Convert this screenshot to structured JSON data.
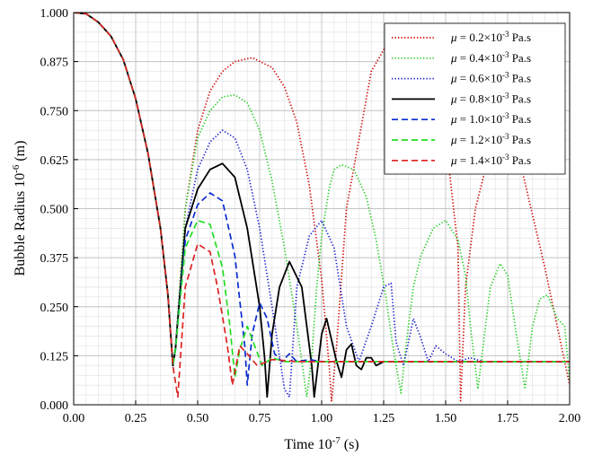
{
  "chart_data": {
    "type": "line",
    "xlabel": "Time 10",
    "xlabel_sup": "-7",
    "xlabel_unit": " (s)",
    "ylabel": "Bubble Radius 10",
    "ylabel_sup": "-6",
    "ylabel_unit": " (m)",
    "xlim": [
      0,
      2
    ],
    "ylim": [
      0,
      1
    ],
    "xticks": [
      "0.00",
      "0.25",
      "0.50",
      "0.75",
      "1.00",
      "1.25",
      "1.50",
      "1.75",
      "2.00"
    ],
    "yticks": [
      "0.000",
      "0.125",
      "0.250",
      "0.375",
      "0.500",
      "0.625",
      "0.750",
      "0.875",
      "1.000"
    ],
    "grid": true,
    "minor_grid": true,
    "legend_position": "top-right",
    "series": [
      {
        "name": "μ = 0.2×10-3 Pa.s",
        "mu": "0.2",
        "color": "#d00000",
        "dash": "dotted",
        "x": [
          0,
          0.05,
          0.1,
          0.15,
          0.2,
          0.25,
          0.3,
          0.35,
          0.38,
          0.4,
          0.41,
          0.45,
          0.5,
          0.55,
          0.6,
          0.65,
          0.72,
          0.8,
          0.85,
          0.9,
          0.95,
          1.0,
          1.03,
          1.04,
          1.06,
          1.1,
          1.2,
          1.3,
          1.4,
          1.5,
          1.55,
          1.56,
          1.58,
          1.62,
          1.7,
          1.8,
          1.9,
          2.0
        ],
        "y": [
          1.0,
          0.997,
          0.975,
          0.94,
          0.88,
          0.78,
          0.64,
          0.45,
          0.28,
          0.1,
          0.14,
          0.5,
          0.7,
          0.8,
          0.85,
          0.875,
          0.885,
          0.86,
          0.81,
          0.72,
          0.56,
          0.32,
          0.1,
          0.01,
          0.15,
          0.5,
          0.85,
          0.96,
          0.9,
          0.68,
          0.4,
          0.01,
          0.3,
          0.5,
          0.7,
          0.62,
          0.35,
          0.05
        ]
      },
      {
        "name": "μ = 0.4×10-3 Pa.s",
        "mu": "0.4",
        "color": "#22cc22",
        "dash": "dotted",
        "x": [
          0,
          0.05,
          0.1,
          0.15,
          0.2,
          0.25,
          0.3,
          0.35,
          0.38,
          0.4,
          0.41,
          0.45,
          0.5,
          0.55,
          0.6,
          0.65,
          0.7,
          0.75,
          0.8,
          0.85,
          0.9,
          0.94,
          0.96,
          0.98,
          1.0,
          1.03,
          1.05,
          1.08,
          1.13,
          1.18,
          1.22,
          1.26,
          1.28,
          1.3,
          1.32,
          1.34,
          1.37,
          1.4,
          1.45,
          1.5,
          1.55,
          1.58,
          1.6,
          1.63,
          1.68,
          1.72,
          1.75,
          1.78,
          1.82,
          1.85,
          1.88,
          1.91,
          1.95,
          1.98,
          2.0
        ],
        "y": [
          1.0,
          0.997,
          0.975,
          0.94,
          0.88,
          0.78,
          0.64,
          0.45,
          0.28,
          0.1,
          0.14,
          0.5,
          0.68,
          0.75,
          0.785,
          0.79,
          0.77,
          0.7,
          0.57,
          0.4,
          0.2,
          0.02,
          0.12,
          0.3,
          0.43,
          0.55,
          0.6,
          0.612,
          0.6,
          0.53,
          0.42,
          0.27,
          0.18,
          0.1,
          0.03,
          0.15,
          0.3,
          0.38,
          0.45,
          0.47,
          0.42,
          0.33,
          0.2,
          0.04,
          0.3,
          0.36,
          0.33,
          0.2,
          0.04,
          0.2,
          0.27,
          0.28,
          0.22,
          0.2,
          0.06
        ]
      },
      {
        "name": "μ = 0.6×10-3 Pa.s",
        "mu": "0.6",
        "color": "#1a1ad0",
        "dash": "dotted",
        "x": [
          0,
          0.05,
          0.1,
          0.15,
          0.2,
          0.25,
          0.3,
          0.35,
          0.38,
          0.4,
          0.41,
          0.45,
          0.5,
          0.55,
          0.6,
          0.65,
          0.7,
          0.75,
          0.8,
          0.85,
          0.87,
          0.9,
          0.95,
          1.0,
          1.05,
          1.1,
          1.15,
          1.2,
          1.25,
          1.28,
          1.3,
          1.33,
          1.37,
          1.4,
          1.43,
          1.46,
          1.5,
          1.55,
          1.6,
          1.65,
          1.7,
          2.0
        ],
        "y": [
          1.0,
          0.997,
          0.975,
          0.94,
          0.88,
          0.78,
          0.64,
          0.45,
          0.28,
          0.1,
          0.14,
          0.45,
          0.6,
          0.67,
          0.7,
          0.68,
          0.6,
          0.45,
          0.25,
          0.04,
          0.02,
          0.3,
          0.43,
          0.47,
          0.4,
          0.2,
          0.11,
          0.2,
          0.3,
          0.31,
          0.16,
          0.1,
          0.22,
          0.17,
          0.11,
          0.15,
          0.13,
          0.11,
          0.12,
          0.11,
          0.11,
          0.11
        ]
      },
      {
        "name": "μ = 0.8×10-3 Pa.s",
        "mu": "0.8",
        "color": "#000000",
        "dash": "solid",
        "x": [
          0,
          0.05,
          0.1,
          0.15,
          0.2,
          0.25,
          0.3,
          0.35,
          0.38,
          0.4,
          0.41,
          0.45,
          0.5,
          0.55,
          0.6,
          0.65,
          0.7,
          0.75,
          0.77,
          0.78,
          0.8,
          0.83,
          0.87,
          0.92,
          0.96,
          0.97,
          1.0,
          1.02,
          1.06,
          1.08,
          1.1,
          1.12,
          1.14,
          1.16,
          1.18,
          1.2,
          1.22,
          1.25,
          1.3,
          1.4,
          2.0
        ],
        "y": [
          1.0,
          0.997,
          0.975,
          0.94,
          0.88,
          0.78,
          0.64,
          0.45,
          0.28,
          0.1,
          0.14,
          0.45,
          0.55,
          0.6,
          0.615,
          0.58,
          0.45,
          0.25,
          0.12,
          0.02,
          0.18,
          0.3,
          0.365,
          0.3,
          0.1,
          0.02,
          0.18,
          0.22,
          0.11,
          0.07,
          0.14,
          0.155,
          0.1,
          0.09,
          0.12,
          0.12,
          0.1,
          0.11,
          0.11,
          0.11,
          0.11
        ]
      },
      {
        "name": "μ = 1.0×10-3 Pa.s",
        "mu": "1.0",
        "color": "#0a2bd0",
        "dash": "dashed",
        "x": [
          0,
          0.05,
          0.1,
          0.15,
          0.2,
          0.25,
          0.3,
          0.35,
          0.38,
          0.4,
          0.41,
          0.45,
          0.5,
          0.55,
          0.6,
          0.65,
          0.69,
          0.7,
          0.72,
          0.75,
          0.78,
          0.81,
          0.84,
          0.87,
          0.9,
          0.95,
          1.0,
          2.0
        ],
        "y": [
          1.0,
          0.997,
          0.975,
          0.94,
          0.88,
          0.78,
          0.64,
          0.45,
          0.28,
          0.1,
          0.14,
          0.42,
          0.51,
          0.54,
          0.52,
          0.38,
          0.15,
          0.05,
          0.18,
          0.26,
          0.22,
          0.13,
          0.11,
          0.13,
          0.11,
          0.115,
          0.11,
          0.11
        ]
      },
      {
        "name": "μ = 1.2×10-3 Pa.s",
        "mu": "1.2",
        "color": "#22dd22",
        "dash": "dashed",
        "x": [
          0,
          0.05,
          0.1,
          0.15,
          0.2,
          0.25,
          0.3,
          0.35,
          0.38,
          0.4,
          0.41,
          0.45,
          0.5,
          0.55,
          0.6,
          0.63,
          0.65,
          0.67,
          0.7,
          0.73,
          0.76,
          0.8,
          0.85,
          0.9,
          2.0
        ],
        "y": [
          1.0,
          0.997,
          0.975,
          0.94,
          0.88,
          0.78,
          0.64,
          0.45,
          0.28,
          0.1,
          0.14,
          0.4,
          0.47,
          0.46,
          0.35,
          0.2,
          0.07,
          0.14,
          0.2,
          0.15,
          0.1,
          0.12,
          0.11,
          0.11,
          0.11
        ]
      },
      {
        "name": "μ = 1.4×10-3 Pa.s",
        "mu": "1.4",
        "color": "#dd2222",
        "dash": "dashed",
        "x": [
          0,
          0.05,
          0.1,
          0.15,
          0.2,
          0.25,
          0.3,
          0.35,
          0.38,
          0.4,
          0.42,
          0.45,
          0.5,
          0.55,
          0.58,
          0.62,
          0.64,
          0.67,
          0.7,
          0.74,
          0.8,
          0.9,
          2.0
        ],
        "y": [
          1.0,
          0.997,
          0.975,
          0.94,
          0.88,
          0.78,
          0.64,
          0.45,
          0.28,
          0.1,
          0.02,
          0.3,
          0.41,
          0.39,
          0.3,
          0.15,
          0.05,
          0.15,
          0.13,
          0.1,
          0.115,
          0.11,
          0.11
        ]
      }
    ]
  }
}
